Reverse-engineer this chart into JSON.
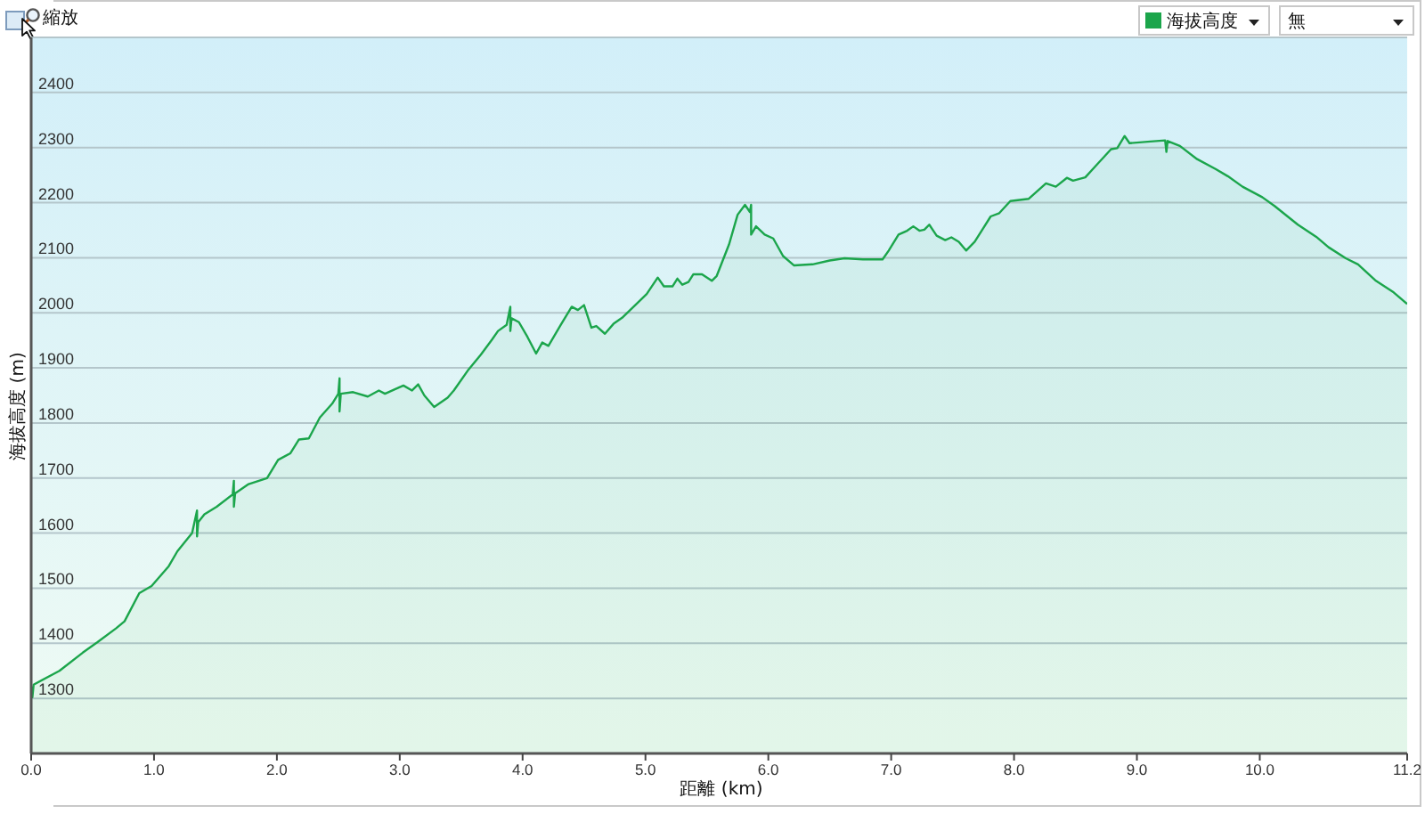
{
  "chart_data": {
    "type": "area",
    "xlabel": "距離 (km)",
    "ylabel": "海拔高度 (m)",
    "x": [
      0,
      0.01,
      0.02,
      0.23,
      0.42,
      0.54,
      0.69,
      0.76,
      0.88,
      0.98,
      1.12,
      1.19,
      1.31,
      1.35,
      1.35,
      1.36,
      1.41,
      1.51,
      1.64,
      1.65,
      1.65,
      1.66,
      1.77,
      1.92,
      2.01,
      2.11,
      2.18,
      2.26,
      2.35,
      2.45,
      2.5,
      2.51,
      2.51,
      2.52,
      2.62,
      2.74,
      2.83,
      2.88,
      2.96,
      3.03,
      3.1,
      3.15,
      3.2,
      3.28,
      3.39,
      3.44,
      3.56,
      3.66,
      3.75,
      3.8,
      3.87,
      3.9,
      3.9,
      3.91,
      3.97,
      4.04,
      4.11,
      4.16,
      4.21,
      4.31,
      4.4,
      4.45,
      4.5,
      4.56,
      4.6,
      4.67,
      4.74,
      4.81,
      5.01,
      5.1,
      5.15,
      5.22,
      5.26,
      5.3,
      5.35,
      5.39,
      5.46,
      5.54,
      5.58,
      5.68,
      5.75,
      5.81,
      5.85,
      5.86,
      5.86,
      5.9,
      5.97,
      6.04,
      6.12,
      6.21,
      6.36,
      6.5,
      6.62,
      6.77,
      6.93,
      6.98,
      7.06,
      7.13,
      7.18,
      7.23,
      7.27,
      7.31,
      7.37,
      7.44,
      7.49,
      7.55,
      7.61,
      7.68,
      7.81,
      7.88,
      7.97,
      8.12,
      8.26,
      8.34,
      8.43,
      8.48,
      8.58,
      8.67,
      8.79,
      8.84,
      8.9,
      8.94,
      9.11,
      9.23,
      9.24,
      9.25,
      9.35,
      9.49,
      9.64,
      9.74,
      9.86,
      10.02,
      10.12,
      10.31,
      10.46,
      10.56,
      10.7,
      10.8,
      10.94,
      11.09,
      11.2
    ],
    "series": [
      {
        "name": "海拔高度",
        "color": "#1ba54b",
        "values": [
          1322,
          1302,
          1325,
          1350,
          1383,
          1402,
          1427,
          1440,
          1491,
          1504,
          1540,
          1567,
          1600,
          1641,
          1594,
          1620,
          1634,
          1648,
          1670,
          1695,
          1648,
          1672,
          1689,
          1700,
          1733,
          1745,
          1770,
          1772,
          1810,
          1835,
          1853,
          1881,
          1821,
          1853,
          1856,
          1848,
          1859,
          1853,
          1861,
          1868,
          1859,
          1870,
          1850,
          1829,
          1846,
          1859,
          1897,
          1924,
          1951,
          1967,
          1978,
          2011,
          1967,
          1990,
          1983,
          1956,
          1926,
          1946,
          1940,
          1978,
          2011,
          2005,
          2014,
          1973,
          1976,
          1962,
          1980,
          1991,
          2034,
          2064,
          2048,
          2048,
          2062,
          2051,
          2056,
          2070,
          2070,
          2058,
          2067,
          2124,
          2178,
          2196,
          2183,
          2196,
          2142,
          2157,
          2142,
          2135,
          2103,
          2086,
          2088,
          2095,
          2099,
          2097,
          2097,
          2113,
          2142,
          2149,
          2157,
          2149,
          2151,
          2160,
          2140,
          2132,
          2137,
          2129,
          2113,
          2129,
          2175,
          2181,
          2203,
          2207,
          2235,
          2229,
          2245,
          2240,
          2246,
          2268,
          2297,
          2299,
          2321,
          2308,
          2311,
          2313,
          2292,
          2312,
          2303,
          2279,
          2261,
          2248,
          2229,
          2210,
          2194,
          2160,
          2138,
          2119,
          2099,
          2088,
          2059,
          2037,
          2016
        ]
      }
    ],
    "xlim": [
      0,
      11.2
    ],
    "xticks": [
      {
        "value": 0,
        "label": "0.0"
      },
      {
        "value": 1,
        "label": "1.0"
      },
      {
        "value": 2,
        "label": "2.0"
      },
      {
        "value": 3,
        "label": "3.0"
      },
      {
        "value": 4,
        "label": "4.0"
      },
      {
        "value": 5,
        "label": "5.0"
      },
      {
        "value": 6,
        "label": "6.0"
      },
      {
        "value": 7,
        "label": "7.0"
      },
      {
        "value": 8,
        "label": "8.0"
      },
      {
        "value": 9,
        "label": "9.0"
      },
      {
        "value": 10,
        "label": "10.0"
      },
      11.2
    ],
    "ylim": [
      1200,
      2500
    ],
    "yticks": [
      1300,
      1400,
      1500,
      1600,
      1700,
      1800,
      1900,
      2000,
      2100,
      2200,
      2300,
      2400
    ],
    "grid": "y",
    "legend": "top right",
    "line_style": "solid",
    "annotations": [
      "縮放",
      "無"
    ]
  }
}
